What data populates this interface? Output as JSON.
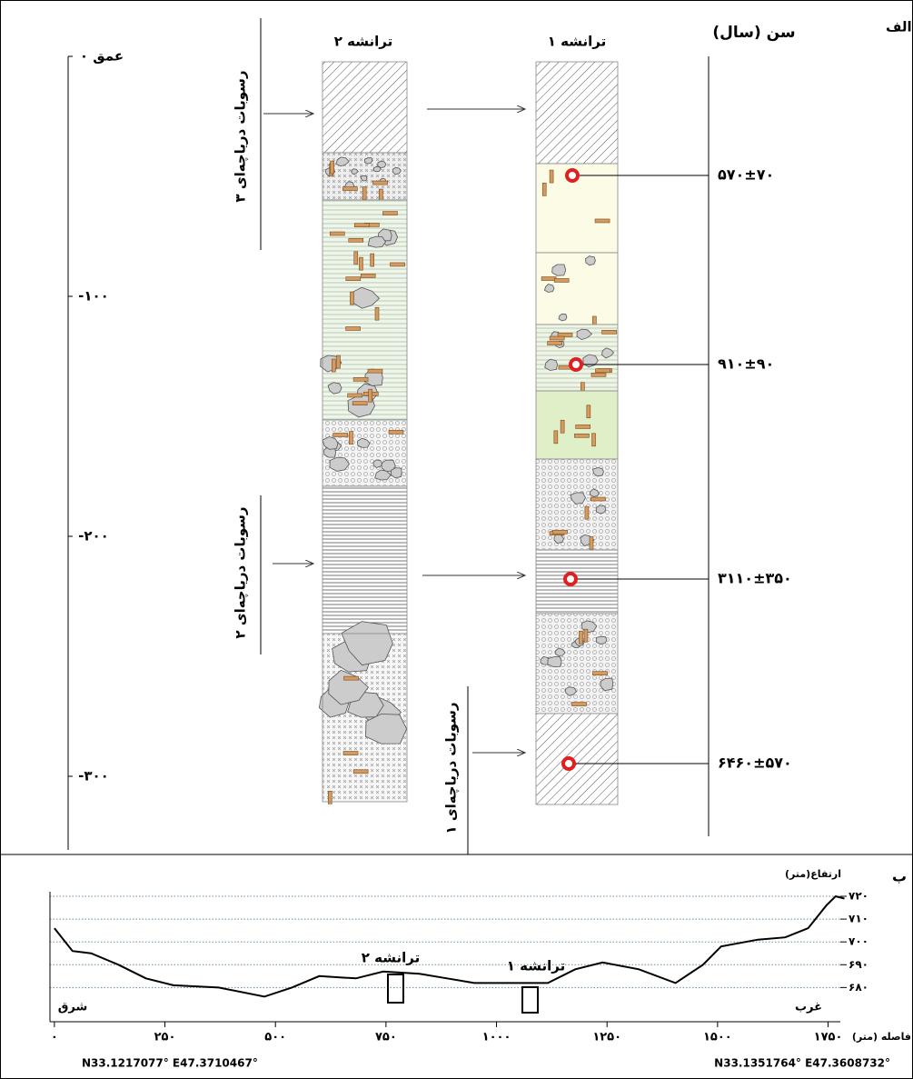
{
  "panel_a": {
    "label": "الف",
    "age_header": "سن (سال)",
    "trenches": [
      "ترانشه ۱",
      "ترانشه ۲"
    ],
    "depth_ticks": [
      {
        "value": 0,
        "label": "عمق ۰"
      },
      {
        "value": -100,
        "label": "-۱۰۰"
      },
      {
        "value": -200,
        "label": "-۲۰۰"
      },
      {
        "value": -300,
        "label": "-۳۰۰"
      }
    ],
    "ages": [
      "۵۷۰±۷۰",
      "۹۱۰±۹۰",
      "۳۱۱۰±۳۵۰",
      "۶۴۶۰±۵۷۰"
    ],
    "sediments": [
      "رسوبات دریاچه‌ای ۳",
      "رسوبات دریاچه‌ای ۲",
      "رسوبات دریاچه‌ای ۱"
    ]
  },
  "chart_data": {
    "type": "line",
    "label": "ب",
    "x_label": "فاصله (متر)",
    "y_label": "ارتفاع(متر)",
    "x": [
      0,
      41,
      83,
      145,
      207,
      269,
      372,
      475,
      537,
      599,
      682,
      744,
      826,
      888,
      950,
      1033,
      1116,
      1178,
      1240,
      1322,
      1405,
      1467,
      1508,
      1591,
      1653,
      1705,
      1746,
      1767,
      1787
    ],
    "values": [
      706,
      696,
      695,
      690,
      684,
      681,
      680,
      676,
      680,
      685,
      684,
      687,
      686,
      684,
      682,
      682,
      682,
      688,
      691,
      688,
      682,
      690,
      698,
      701,
      702,
      706,
      716,
      720,
      719
    ],
    "color": "#000000",
    "xlim": [
      -10,
      1790
    ],
    "ylim": [
      665,
      722
    ],
    "xticks": [
      {
        "value": 0,
        "label": "۰"
      },
      {
        "value": 250,
        "label": "۲۵۰"
      },
      {
        "value": 500,
        "label": "۵۰۰"
      },
      {
        "value": 750,
        "label": "۷۵۰"
      },
      {
        "value": 1000,
        "label": "۱۰۰۰"
      },
      {
        "value": 1250,
        "label": "۱۲۵۰"
      },
      {
        "value": 1500,
        "label": "۱۵۰۰"
      },
      {
        "value": 1750,
        "label": "۱۷۵۰"
      }
    ],
    "yticks": [
      {
        "value": 720,
        "label": "۷۲۰"
      },
      {
        "value": 710,
        "label": "۷۱۰"
      },
      {
        "value": 700,
        "label": "۷۰۰"
      },
      {
        "value": 690,
        "label": "۶۹۰"
      },
      {
        "value": 680,
        "label": "۶۸۰"
      }
    ],
    "grid": true,
    "annotations": [
      "ترانشه ۲",
      "ترانشه ۱"
    ],
    "direction_labels": [
      "شرق",
      "غرب"
    ],
    "coordinates": [
      "N33.1217077° E47.3710467°",
      "N33.1351764° E47.3608732°"
    ]
  }
}
